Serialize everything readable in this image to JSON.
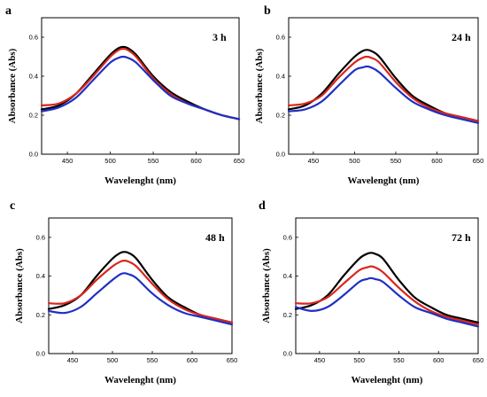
{
  "colors": {
    "black": "#000000",
    "red": "#d9261c",
    "blue": "#1f2fc4"
  },
  "chart_data": [
    {
      "type": "line",
      "panel_letter": "a",
      "annotation": "3 h",
      "xlabel": "Wavelenght (nm)",
      "ylabel": "Absorbance (Abs)",
      "xlim": [
        420,
        650
      ],
      "ylim": [
        0.0,
        0.7
      ],
      "xticks": [
        "450",
        "500",
        "550",
        "600",
        "650"
      ],
      "yticks": [
        "0.0",
        "0.2",
        "0.4",
        "0.6"
      ],
      "x": [
        420,
        440,
        460,
        480,
        500,
        510,
        515,
        520,
        530,
        550,
        570,
        590,
        610,
        630,
        650
      ],
      "series": [
        {
          "color": "#000000",
          "values": [
            0.23,
            0.25,
            0.31,
            0.41,
            0.51,
            0.545,
            0.55,
            0.545,
            0.51,
            0.4,
            0.32,
            0.27,
            0.23,
            0.2,
            0.18
          ]
        },
        {
          "color": "#d9261c",
          "values": [
            0.25,
            0.26,
            0.31,
            0.4,
            0.5,
            0.535,
            0.54,
            0.535,
            0.5,
            0.39,
            0.31,
            0.26,
            0.23,
            0.2,
            0.18
          ]
        },
        {
          "color": "#1f2fc4",
          "values": [
            0.22,
            0.24,
            0.29,
            0.38,
            0.47,
            0.495,
            0.5,
            0.495,
            0.47,
            0.38,
            0.3,
            0.26,
            0.23,
            0.2,
            0.18
          ]
        }
      ]
    },
    {
      "type": "line",
      "panel_letter": "b",
      "annotation": "24 h",
      "xlabel": "Wavelenght (nm)",
      "ylabel": "Absorbance (Abs)",
      "xlim": [
        420,
        650
      ],
      "ylim": [
        0.0,
        0.7
      ],
      "xticks": [
        "450",
        "500",
        "550",
        "600",
        "650"
      ],
      "yticks": [
        "0.0",
        "0.2",
        "0.4",
        "0.6"
      ],
      "x": [
        420,
        440,
        460,
        480,
        500,
        510,
        515,
        520,
        530,
        550,
        570,
        590,
        610,
        630,
        650
      ],
      "series": [
        {
          "color": "#000000",
          "values": [
            0.23,
            0.25,
            0.31,
            0.41,
            0.5,
            0.53,
            0.535,
            0.53,
            0.5,
            0.39,
            0.3,
            0.25,
            0.21,
            0.19,
            0.17
          ]
        },
        {
          "color": "#d9261c",
          "values": [
            0.25,
            0.26,
            0.3,
            0.39,
            0.47,
            0.495,
            0.5,
            0.495,
            0.47,
            0.37,
            0.29,
            0.24,
            0.21,
            0.19,
            0.17
          ]
        },
        {
          "color": "#1f2fc4",
          "values": [
            0.22,
            0.23,
            0.27,
            0.35,
            0.43,
            0.445,
            0.45,
            0.445,
            0.42,
            0.34,
            0.27,
            0.23,
            0.2,
            0.18,
            0.16
          ]
        }
      ]
    },
    {
      "type": "line",
      "panel_letter": "c",
      "annotation": "48 h",
      "xlabel": "Wavelenght (nm)",
      "ylabel": "Absorbance (Abs)",
      "xlim": [
        420,
        650
      ],
      "ylim": [
        0.0,
        0.7
      ],
      "xticks": [
        "450",
        "500",
        "550",
        "600",
        "650"
      ],
      "yticks": [
        "0.0",
        "0.2",
        "0.4",
        "0.6"
      ],
      "x": [
        420,
        440,
        460,
        480,
        500,
        510,
        515,
        520,
        530,
        550,
        570,
        590,
        610,
        630,
        650
      ],
      "series": [
        {
          "color": "#000000",
          "values": [
            0.23,
            0.25,
            0.3,
            0.4,
            0.49,
            0.52,
            0.525,
            0.52,
            0.49,
            0.38,
            0.29,
            0.24,
            0.2,
            0.18,
            0.16
          ]
        },
        {
          "color": "#d9261c",
          "values": [
            0.26,
            0.26,
            0.3,
            0.38,
            0.45,
            0.475,
            0.48,
            0.475,
            0.45,
            0.36,
            0.28,
            0.23,
            0.2,
            0.18,
            0.16
          ]
        },
        {
          "color": "#1f2fc4",
          "values": [
            0.22,
            0.21,
            0.24,
            0.31,
            0.38,
            0.41,
            0.415,
            0.41,
            0.39,
            0.31,
            0.25,
            0.21,
            0.19,
            0.17,
            0.15
          ]
        }
      ]
    },
    {
      "type": "line",
      "panel_letter": "d",
      "annotation": "72 h",
      "xlabel": "Wavelenght (nm)",
      "ylabel": "Absorbance (Abs)",
      "xlim": [
        420,
        650
      ],
      "ylim": [
        0.0,
        0.7
      ],
      "xticks": [
        "450",
        "500",
        "550",
        "600",
        "650"
      ],
      "yticks": [
        "0.0",
        "0.2",
        "0.4",
        "0.6"
      ],
      "x": [
        420,
        440,
        460,
        480,
        500,
        510,
        515,
        520,
        530,
        550,
        570,
        590,
        610,
        630,
        650
      ],
      "series": [
        {
          "color": "#000000",
          "values": [
            0.23,
            0.25,
            0.3,
            0.4,
            0.49,
            0.515,
            0.52,
            0.515,
            0.49,
            0.38,
            0.29,
            0.24,
            0.2,
            0.18,
            0.16
          ]
        },
        {
          "color": "#d9261c",
          "values": [
            0.26,
            0.26,
            0.29,
            0.36,
            0.43,
            0.445,
            0.45,
            0.445,
            0.42,
            0.34,
            0.27,
            0.22,
            0.19,
            0.17,
            0.15
          ]
        },
        {
          "color": "#1f2fc4",
          "values": [
            0.24,
            0.22,
            0.24,
            0.3,
            0.37,
            0.385,
            0.39,
            0.385,
            0.37,
            0.3,
            0.24,
            0.21,
            0.18,
            0.16,
            0.14
          ]
        }
      ]
    }
  ]
}
